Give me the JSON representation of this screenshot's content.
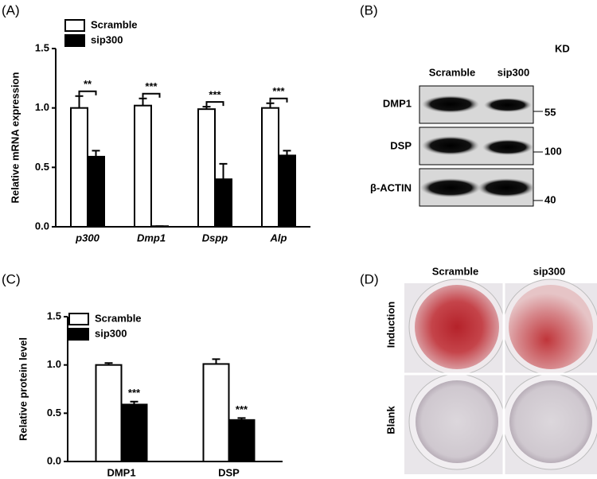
{
  "panel_labels": [
    "(A)",
    "(B)",
    "(C)",
    "(D)"
  ],
  "chart_data": [
    {
      "type": "bar",
      "y_label": "Relative mRNA expression",
      "categories": [
        "p300",
        "Dmp1",
        "Dspp",
        "Alp"
      ],
      "series": [
        {
          "name": "Scramble",
          "color": "#ffffff",
          "values": [
            1.0,
            1.02,
            0.99,
            1.0
          ],
          "errors": [
            0.1,
            0.06,
            0.02,
            0.04
          ]
        },
        {
          "name": "sip300",
          "color": "#000000",
          "values": [
            0.59,
            0.005,
            0.4,
            0.6
          ],
          "errors": [
            0.05,
            0,
            0.13,
            0.04
          ]
        }
      ],
      "significance": [
        "**",
        "***",
        "***",
        "***"
      ],
      "ylim": [
        0,
        1.5
      ],
      "yticks": [
        {
          "value": 0,
          "label": "0.0"
        },
        0.5,
        {
          "value": 1,
          "label": "1.0"
        },
        1.5
      ]
    },
    {
      "type": "bar",
      "y_label": "Relative protein level",
      "categories": [
        "DMP1",
        "DSP"
      ],
      "series": [
        {
          "name": "Scramble",
          "color": "#ffffff",
          "values": [
            1.0,
            1.01
          ],
          "errors": [
            0.02,
            0.05
          ]
        },
        {
          "name": "sip300",
          "color": "#000000",
          "values": [
            0.59,
            0.43
          ],
          "errors": [
            0.03,
            0.02
          ]
        }
      ],
      "significance": [
        "***",
        "***"
      ],
      "ylim": [
        0,
        1.5
      ],
      "yticks": [
        {
          "value": 0,
          "label": "0.0"
        },
        0.5,
        {
          "value": 1,
          "label": "1.0"
        },
        1.5
      ]
    }
  ],
  "blot": {
    "unit": "KD",
    "columns": [
      "Scramble",
      "sip300"
    ],
    "rows": [
      {
        "name": "DMP1",
        "marker": "55"
      },
      {
        "name": "DSP",
        "marker": "100"
      },
      {
        "name": "β-ACTIN",
        "marker": "40"
      }
    ]
  },
  "staining": {
    "columns": [
      "Scramble",
      "sip300"
    ],
    "rows": [
      "Induction",
      "Blank"
    ]
  }
}
